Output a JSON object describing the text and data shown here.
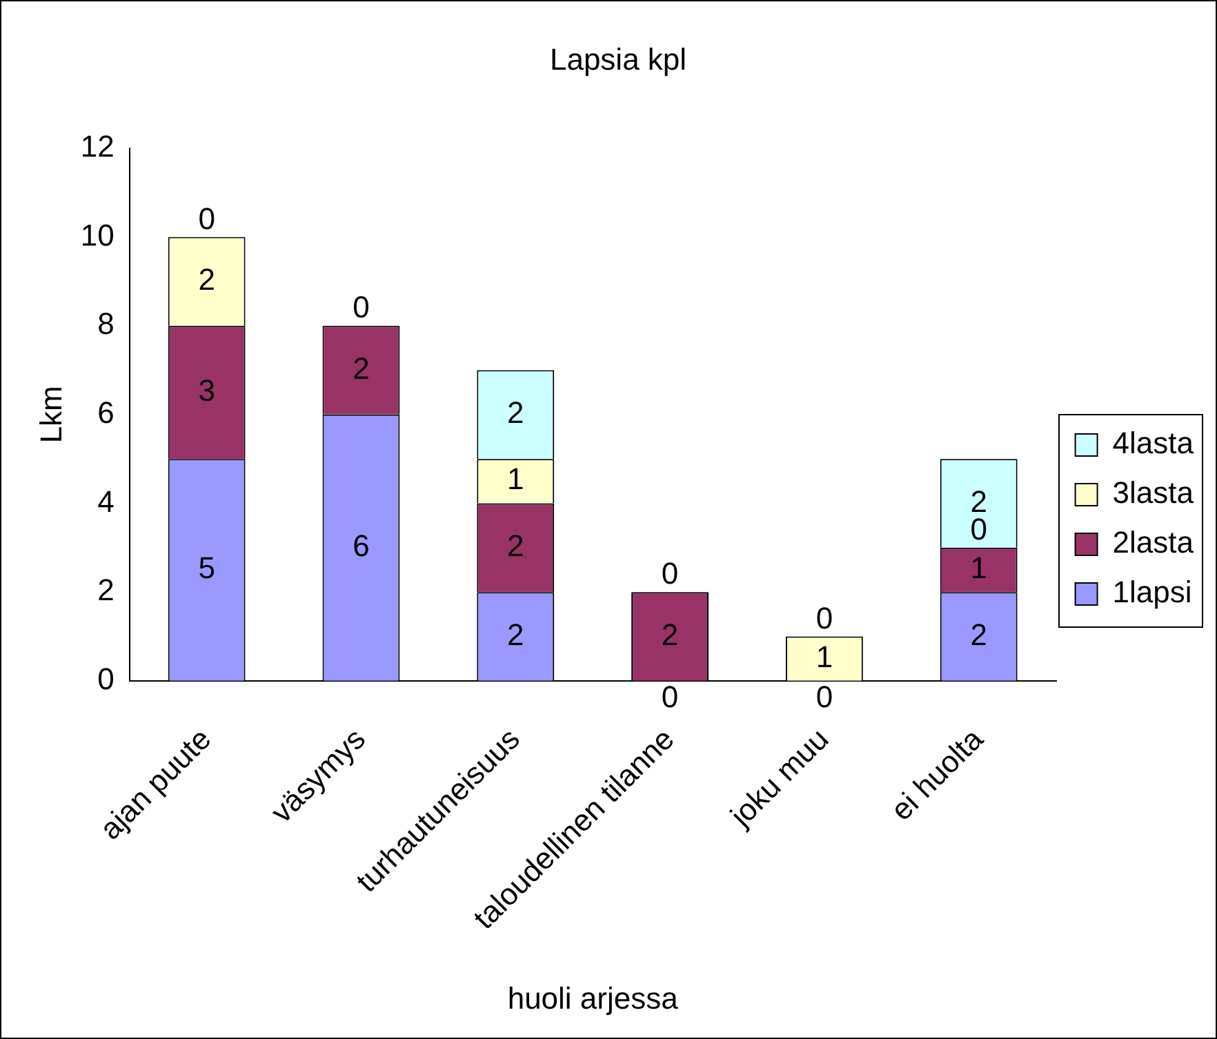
{
  "chart_data": {
    "type": "bar",
    "title": "Lapsia kpl",
    "xlabel": "huoli arjessa",
    "ylabel": "Lkm",
    "categories": [
      "ajan puute",
      "väsymys",
      "turhautuneisuus",
      "taloudellinen tilanne",
      "joku muu",
      "ei huolta"
    ],
    "series": [
      {
        "name": "1lapsi",
        "color": "#9999ff",
        "values": [
          5,
          6,
          2,
          0,
          0,
          2
        ],
        "value_labels": [
          "5",
          "6",
          "2",
          "0",
          "0",
          "2"
        ]
      },
      {
        "name": "2lasta",
        "color": "#993366",
        "values": [
          3,
          2,
          2,
          2,
          0,
          1
        ],
        "value_labels": [
          "3",
          "2",
          "2",
          "2",
          null,
          "1"
        ]
      },
      {
        "name": "3lasta",
        "color": "#ffffcc",
        "values": [
          2,
          0,
          1,
          0,
          1,
          0
        ],
        "value_labels": [
          "2",
          "0",
          "1",
          "0",
          "1",
          "0"
        ]
      },
      {
        "name": "4lasta",
        "color": "#ccffff",
        "values": [
          0,
          0,
          2,
          0,
          0,
          2
        ],
        "value_labels": [
          "0",
          null,
          "2",
          null,
          "0",
          "2"
        ]
      }
    ],
    "stacked": true,
    "ylim": [
      0,
      12
    ],
    "yticks": [
      0,
      2,
      4,
      6,
      8,
      10,
      12
    ],
    "grid": false,
    "legend": "right"
  }
}
